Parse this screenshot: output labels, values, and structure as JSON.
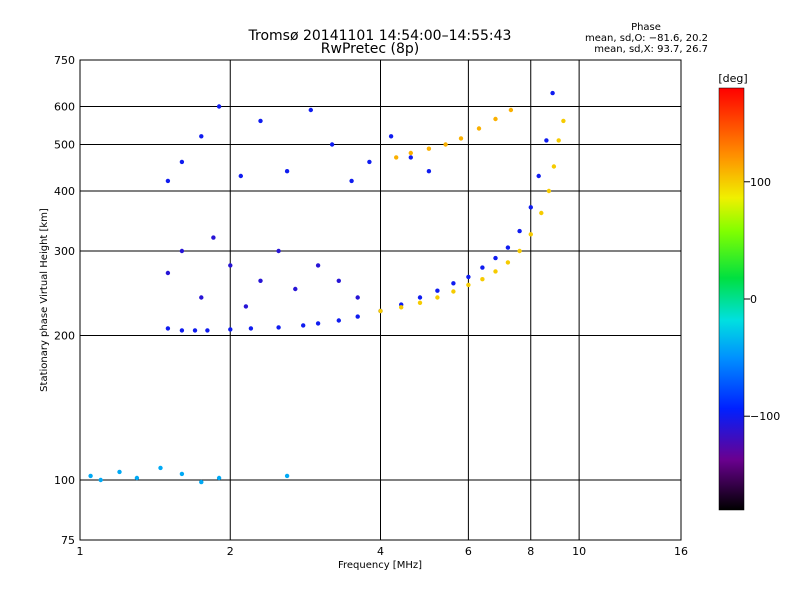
{
  "chart_data": {
    "type": "scatter",
    "title": "Tromsø 20141101  14:54:00–14:55:43",
    "subtitle": "RwPretec (8p)",
    "xlabel": "Frequency [MHz]",
    "ylabel": "Stationary phase Virtual Height [km]",
    "x_scale": "log",
    "y_scale": "log",
    "xlim": [
      1,
      16
    ],
    "ylim": [
      75,
      750
    ],
    "x_ticks": [
      1,
      2,
      4,
      6,
      8,
      10,
      16
    ],
    "y_ticks": [
      75,
      100,
      200,
      300,
      400,
      500,
      600,
      750
    ],
    "grid": true,
    "phase_info": {
      "title": "Phase",
      "line_o": "mean, sd,O: −81.6, 20.2",
      "line_x": "mean, sd,X:  93.7, 26.7"
    },
    "colorbar": {
      "label": "[deg]",
      "range": [
        -180,
        180
      ],
      "ticks": [
        -100,
        0,
        100
      ],
      "tick_labels": [
        "−100",
        "0",
        "100"
      ]
    },
    "series": [
      {
        "trace": "lower-o",
        "phase": -100,
        "x": [
          1.5,
          1.6,
          1.7,
          1.8,
          2.0,
          2.2,
          2.5,
          2.8,
          3.0,
          3.3,
          3.6,
          4.0,
          4.4,
          4.8,
          5.2,
          5.6,
          6.0,
          6.4,
          6.8,
          7.2,
          7.6,
          8.0,
          8.3,
          8.6,
          8.85
        ],
        "y": [
          207,
          205,
          205,
          205,
          206,
          207,
          208,
          210,
          212,
          215,
          219,
          225,
          232,
          240,
          248,
          257,
          265,
          277,
          290,
          305,
          330,
          370,
          430,
          510,
          640
        ]
      },
      {
        "trace": "lower-x",
        "phase": 100,
        "x": [
          4.0,
          4.4,
          4.8,
          5.2,
          5.6,
          6.0,
          6.4,
          6.8,
          7.2,
          7.6,
          8.0,
          8.4,
          8.7,
          8.9,
          9.1,
          9.3
        ],
        "y": [
          225,
          229,
          234,
          240,
          247,
          255,
          262,
          272,
          284,
          300,
          325,
          360,
          400,
          450,
          510,
          560
        ]
      },
      {
        "trace": "spread-f-o",
        "phase": -110,
        "x": [
          1.5,
          1.6,
          1.75,
          1.85,
          2.0,
          2.15,
          2.3,
          2.5,
          2.7,
          3.0,
          3.3,
          3.6
        ],
        "y": [
          270,
          300,
          240,
          320,
          280,
          230,
          260,
          300,
          250,
          280,
          260,
          240
        ]
      },
      {
        "trace": "upper-o",
        "phase": -100,
        "x": [
          1.5,
          1.6,
          1.75,
          1.9,
          2.1,
          2.3,
          2.6,
          2.9,
          3.2,
          3.5,
          3.8,
          4.2,
          4.6,
          5.0
        ],
        "y": [
          420,
          460,
          520,
          600,
          430,
          560,
          440,
          590,
          500,
          420,
          460,
          520,
          470,
          440
        ]
      },
      {
        "trace": "upper-x",
        "phase": 110,
        "x": [
          4.3,
          4.6,
          5.0,
          5.4,
          5.8,
          6.3,
          6.8,
          7.3
        ],
        "y": [
          470,
          480,
          490,
          500,
          515,
          540,
          565,
          590
        ]
      },
      {
        "trace": "low-echoes",
        "phase": -40,
        "x": [
          1.05,
          1.1,
          1.2,
          1.3,
          1.45,
          1.6,
          1.75,
          1.9,
          2.6
        ],
        "y": [
          102,
          100,
          104,
          101,
          106,
          103,
          99,
          101,
          102
        ]
      }
    ]
  }
}
